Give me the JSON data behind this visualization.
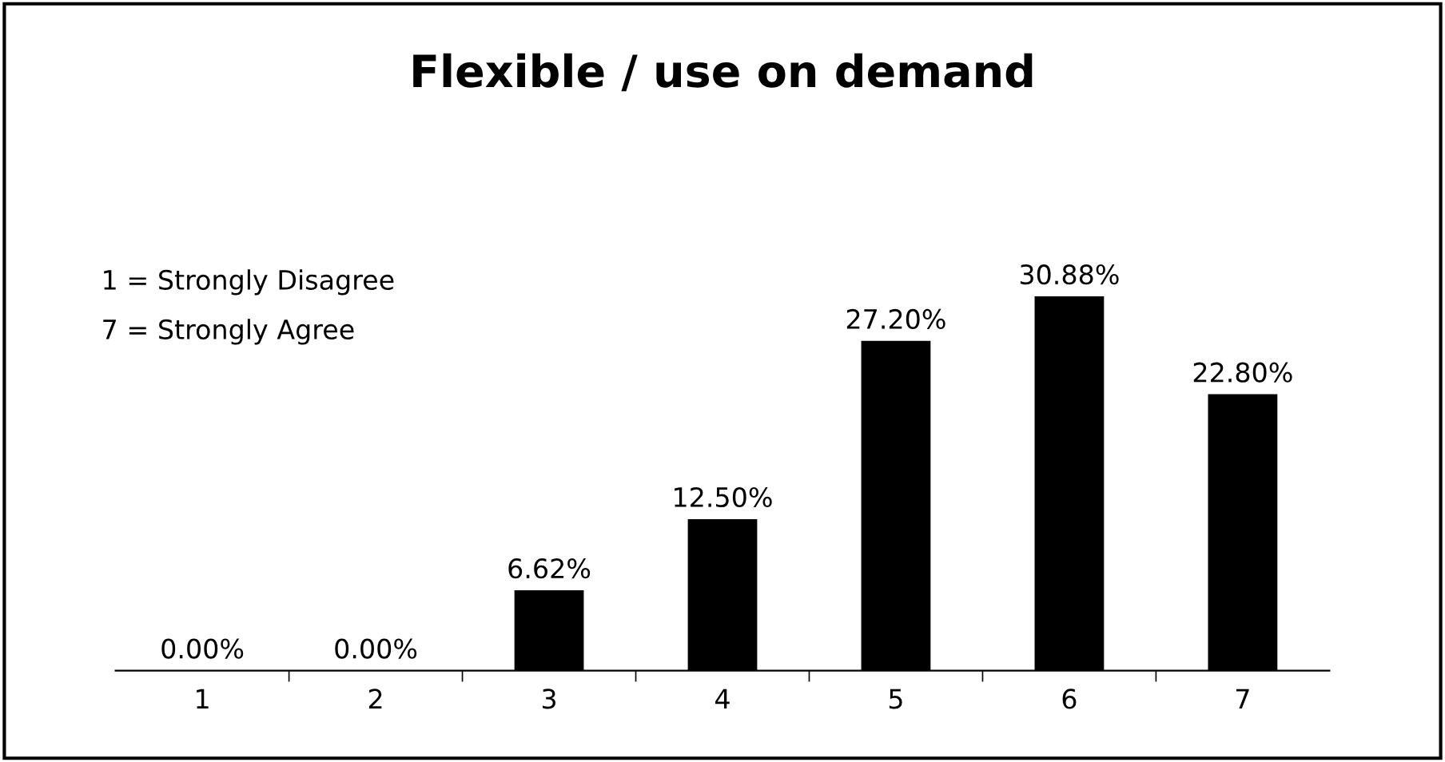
{
  "chart_data": {
    "type": "bar",
    "title": "Flexible / use on demand",
    "categories": [
      "1",
      "2",
      "3",
      "4",
      "5",
      "6",
      "7"
    ],
    "values": [
      0,
      0,
      6.62,
      12.5,
      27.2,
      30.88,
      22.8
    ],
    "value_labels": [
      "0.00%",
      "0.00%",
      "6.62%",
      "12.50%",
      "27.20%",
      "30.88%",
      "22.80%"
    ],
    "color": "#000000",
    "annotations": [
      "1 = Strongly Disagree",
      "7 = Strongly Agree"
    ],
    "grid": false,
    "legend": false
  }
}
